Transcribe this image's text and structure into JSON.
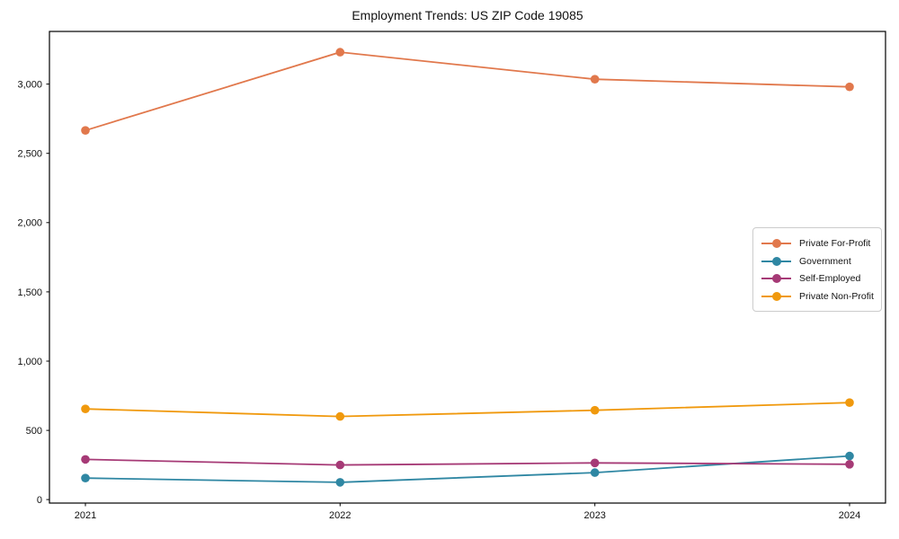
{
  "title": "Employment Trends: US ZIP Code 19085",
  "chart_data": {
    "type": "line",
    "title": "Employment Trends: US ZIP Code 19085",
    "xlabel": "",
    "ylabel": "",
    "categories": [
      "2021",
      "2022",
      "2023",
      "2024"
    ],
    "x_tick_labels": [
      "2021",
      "2022",
      "2023",
      "2024"
    ],
    "y_ticks": [
      0,
      500,
      1000,
      1500,
      2000,
      2500,
      3000
    ],
    "y_tick_labels": [
      "0",
      "500",
      "1,000",
      "1,500",
      "2,000",
      "2,500",
      "3,000"
    ],
    "ylim": [
      -25,
      3380
    ],
    "grid": false,
    "legend_position": "center right",
    "series": [
      {
        "name": "Private For-Profit",
        "color": "#e1784c",
        "values": [
          2665,
          3230,
          3035,
          2980
        ]
      },
      {
        "name": "Government",
        "color": "#2f87a3",
        "values": [
          155,
          125,
          195,
          315
        ]
      },
      {
        "name": "Self-Employed",
        "color": "#a63a76",
        "values": [
          290,
          250,
          265,
          255
        ]
      },
      {
        "name": "Private Non-Profit",
        "color": "#f0990d",
        "values": [
          655,
          600,
          645,
          700
        ]
      }
    ]
  }
}
